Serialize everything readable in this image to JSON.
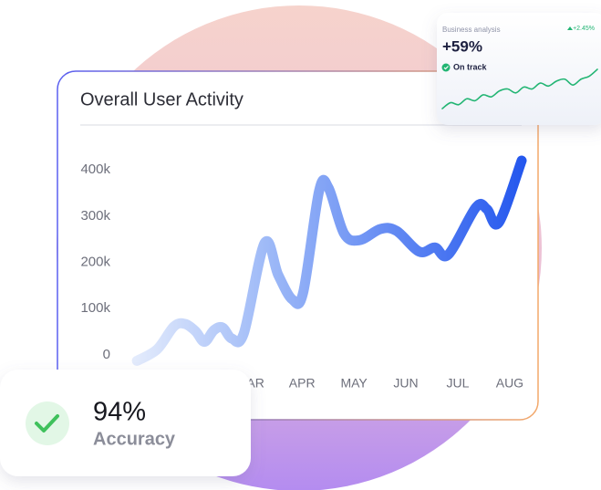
{
  "chart_data": [
    {
      "type": "line",
      "title": "Overall User Activity",
      "x": [
        0.82,
        1.21,
        1.53,
        1.74,
        1.95,
        2.12,
        2.3,
        2.47,
        2.65,
        2.88,
        3.28,
        3.54,
        3.81,
        4.02,
        4.33,
        4.51,
        4.81,
        5.11,
        5.51,
        5.82,
        6.26,
        6.56,
        6.82,
        7.35,
        7.56,
        7.79,
        8.23
      ],
      "series": [
        {
          "color": "#2f62ee",
          "values": [
            -13000,
            12000,
            61000,
            67000,
            51000,
            28000,
            53000,
            59000,
            35000,
            47000,
            242000,
            173000,
            120000,
            134000,
            355000,
            361000,
            262000,
            248000,
            272000,
            268000,
            223000,
            232000,
            217000,
            319000,
            315000,
            286000,
            420000
          ]
        }
      ],
      "xlim": [
        0.8,
        8.3
      ],
      "xticks": [
        {
          "value": 3,
          "label": "MAR"
        },
        {
          "value": 4,
          "label": "APR"
        },
        {
          "value": 5,
          "label": "MAY"
        },
        {
          "value": 6,
          "label": "JUN"
        },
        {
          "value": 7,
          "label": "JUL"
        },
        {
          "value": 8,
          "label": "AUG"
        }
      ],
      "ylim": [
        -20000,
        420000
      ],
      "yticks": [
        0,
        {
          "value": 100000,
          "label": "100k"
        },
        {
          "value": 200000,
          "label": "200k"
        },
        {
          "value": 300000,
          "label": "300k"
        },
        {
          "value": 400000,
          "label": "400k"
        }
      ]
    },
    {
      "type": "line",
      "title": "Business analysis",
      "headline": "+59%",
      "status": "On track",
      "change": "+2.45%",
      "series": [
        {
          "color": "#22b573",
          "values": [
            2,
            8,
            6,
            12,
            10,
            16,
            14,
            20,
            22,
            18,
            24,
            22,
            28,
            25,
            30,
            32,
            26,
            32,
            35,
            42
          ]
        }
      ]
    }
  ],
  "accuracy_card": {
    "value": "94%",
    "label": "Accuracy"
  }
}
